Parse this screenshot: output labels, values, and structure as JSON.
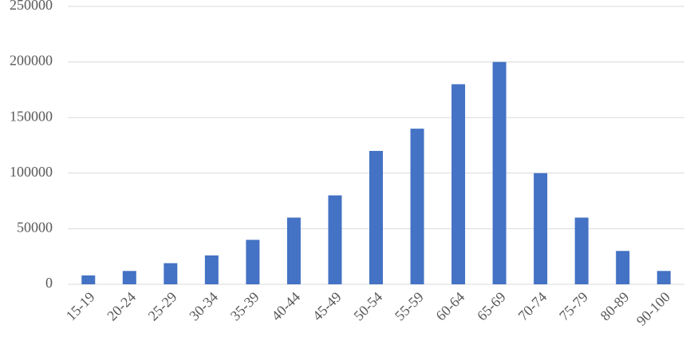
{
  "chart_data": {
    "type": "bar",
    "categories": [
      "15-19",
      "20-24",
      "25-29",
      "30-34",
      "35-39",
      "40-44",
      "45-49",
      "50-54",
      "55-59",
      "60-64",
      "65-69",
      "70-74",
      "75-79",
      "80-89",
      "90-100"
    ],
    "values": [
      8000,
      12000,
      19000,
      26000,
      40000,
      60000,
      80000,
      120000,
      140000,
      180000,
      200000,
      100000,
      60000,
      30000,
      12000
    ],
    "color": "#4472c4",
    "ylim": [
      0,
      250000
    ],
    "yticks": [
      0,
      50000,
      100000,
      150000,
      200000,
      250000
    ],
    "grid": true
  }
}
